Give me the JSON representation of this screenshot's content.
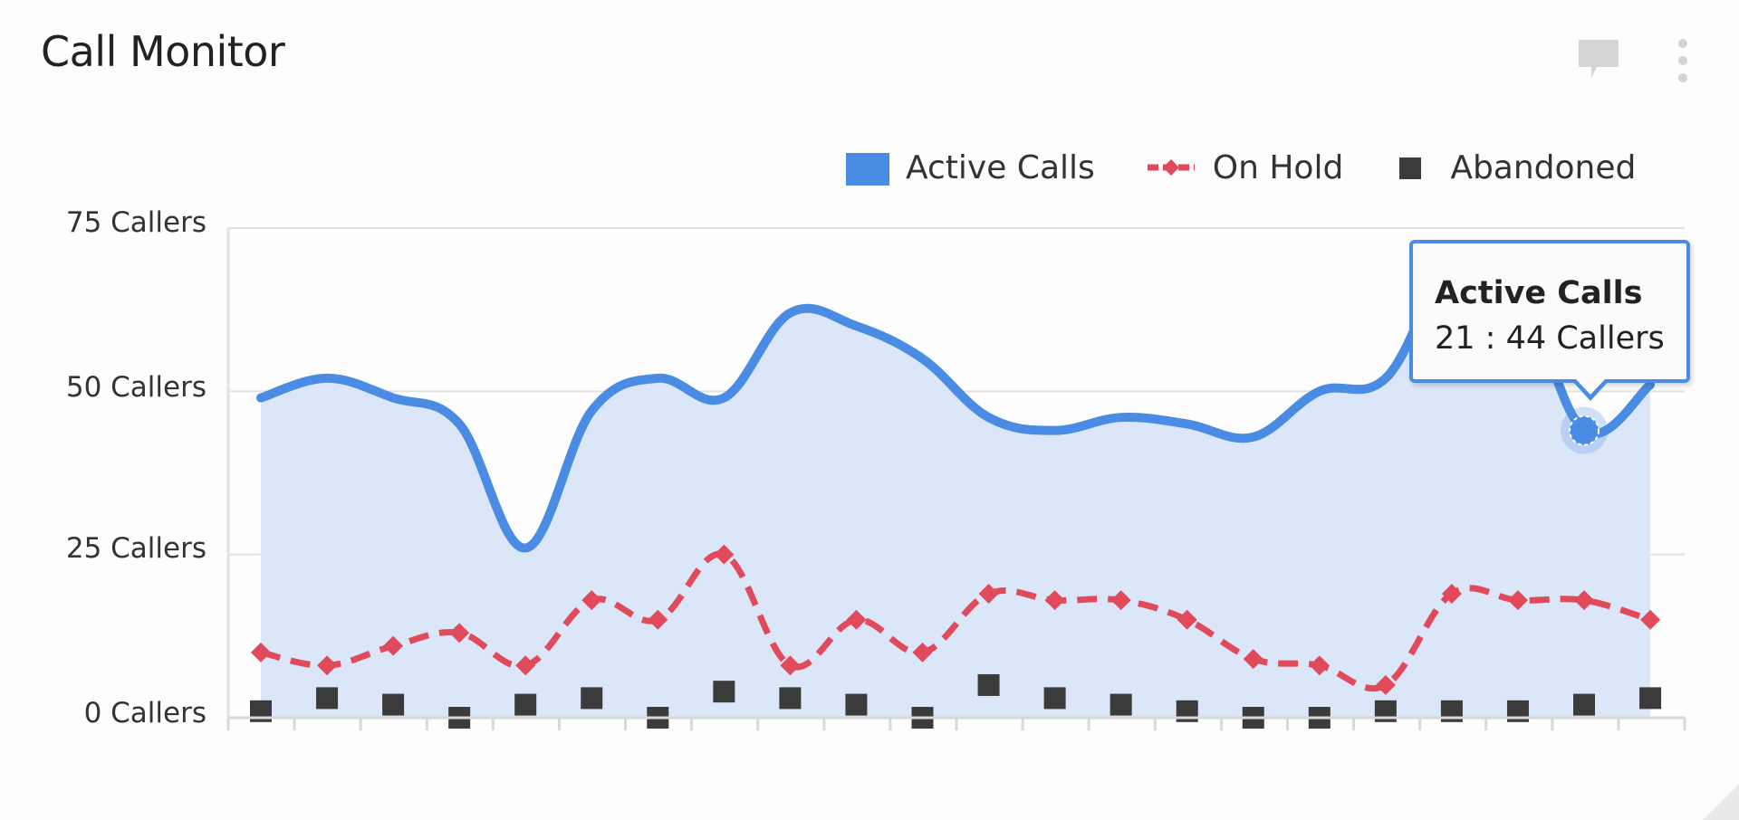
{
  "widget": {
    "title": "Call Monitor",
    "icons": [
      "comment-icon",
      "more-vertical-icon"
    ]
  },
  "legend": [
    {
      "label": "Active Calls",
      "color": "#4a8be3",
      "marker": "square"
    },
    {
      "label": "On Hold",
      "color": "#e04a5a",
      "marker": "diamond-dashed-line"
    },
    {
      "label": "Abandoned",
      "color": "#3b3b3b",
      "marker": "square"
    }
  ],
  "y_axis": {
    "labels": [
      "75 Callers",
      "50 Callers",
      "25 Callers",
      "0 Callers"
    ]
  },
  "tooltip": {
    "series": "Active Calls",
    "value_text": "21 : 44 Callers"
  },
  "colors": {
    "active": "#4a8be3",
    "active_fill": "#dbe7f8",
    "on_hold": "#e04a5a",
    "abandoned": "#3b3b3b",
    "grid": "#e2e2e2"
  },
  "chart_data": {
    "type": "line",
    "title": "Call Monitor",
    "xlabel": "",
    "ylabel": "Callers",
    "ylim": [
      0,
      75
    ],
    "yticks": [
      0,
      25,
      50,
      75
    ],
    "ytick_labels": [
      "0 Callers",
      "25 Callers",
      "50 Callers",
      "75 Callers"
    ],
    "grid": true,
    "legend_position": "top-right",
    "x": [
      0,
      1,
      2,
      3,
      4,
      5,
      6,
      7,
      8,
      9,
      10,
      11,
      12,
      13,
      14,
      15,
      16,
      17,
      18,
      19,
      20,
      21
    ],
    "series": [
      {
        "name": "Active Calls",
        "style": "smooth area",
        "color": "#4a8be3",
        "values": [
          49,
          52,
          49,
          45,
          26,
          47,
          52,
          49,
          62,
          60,
          55,
          46,
          44,
          46,
          45,
          43,
          50,
          52,
          69,
          66,
          44,
          51
        ]
      },
      {
        "name": "On Hold",
        "style": "dashed line with diamond markers",
        "color": "#e04a5a",
        "values": [
          10,
          8,
          11,
          13,
          8,
          18,
          15,
          25,
          8,
          15,
          10,
          19,
          18,
          18,
          15,
          9,
          8,
          5,
          19,
          18,
          18,
          15
        ]
      },
      {
        "name": "Abandoned",
        "style": "square markers only",
        "color": "#3b3b3b",
        "values": [
          1,
          3,
          2,
          0,
          2,
          3,
          0,
          4,
          3,
          2,
          0,
          5,
          3,
          2,
          1,
          0,
          0,
          1,
          1,
          1,
          2,
          3
        ]
      }
    ],
    "annotations": [
      {
        "type": "tooltip",
        "series": "Active Calls",
        "index": 20,
        "text": "Active Calls / 21 : 44 Callers"
      }
    ]
  }
}
